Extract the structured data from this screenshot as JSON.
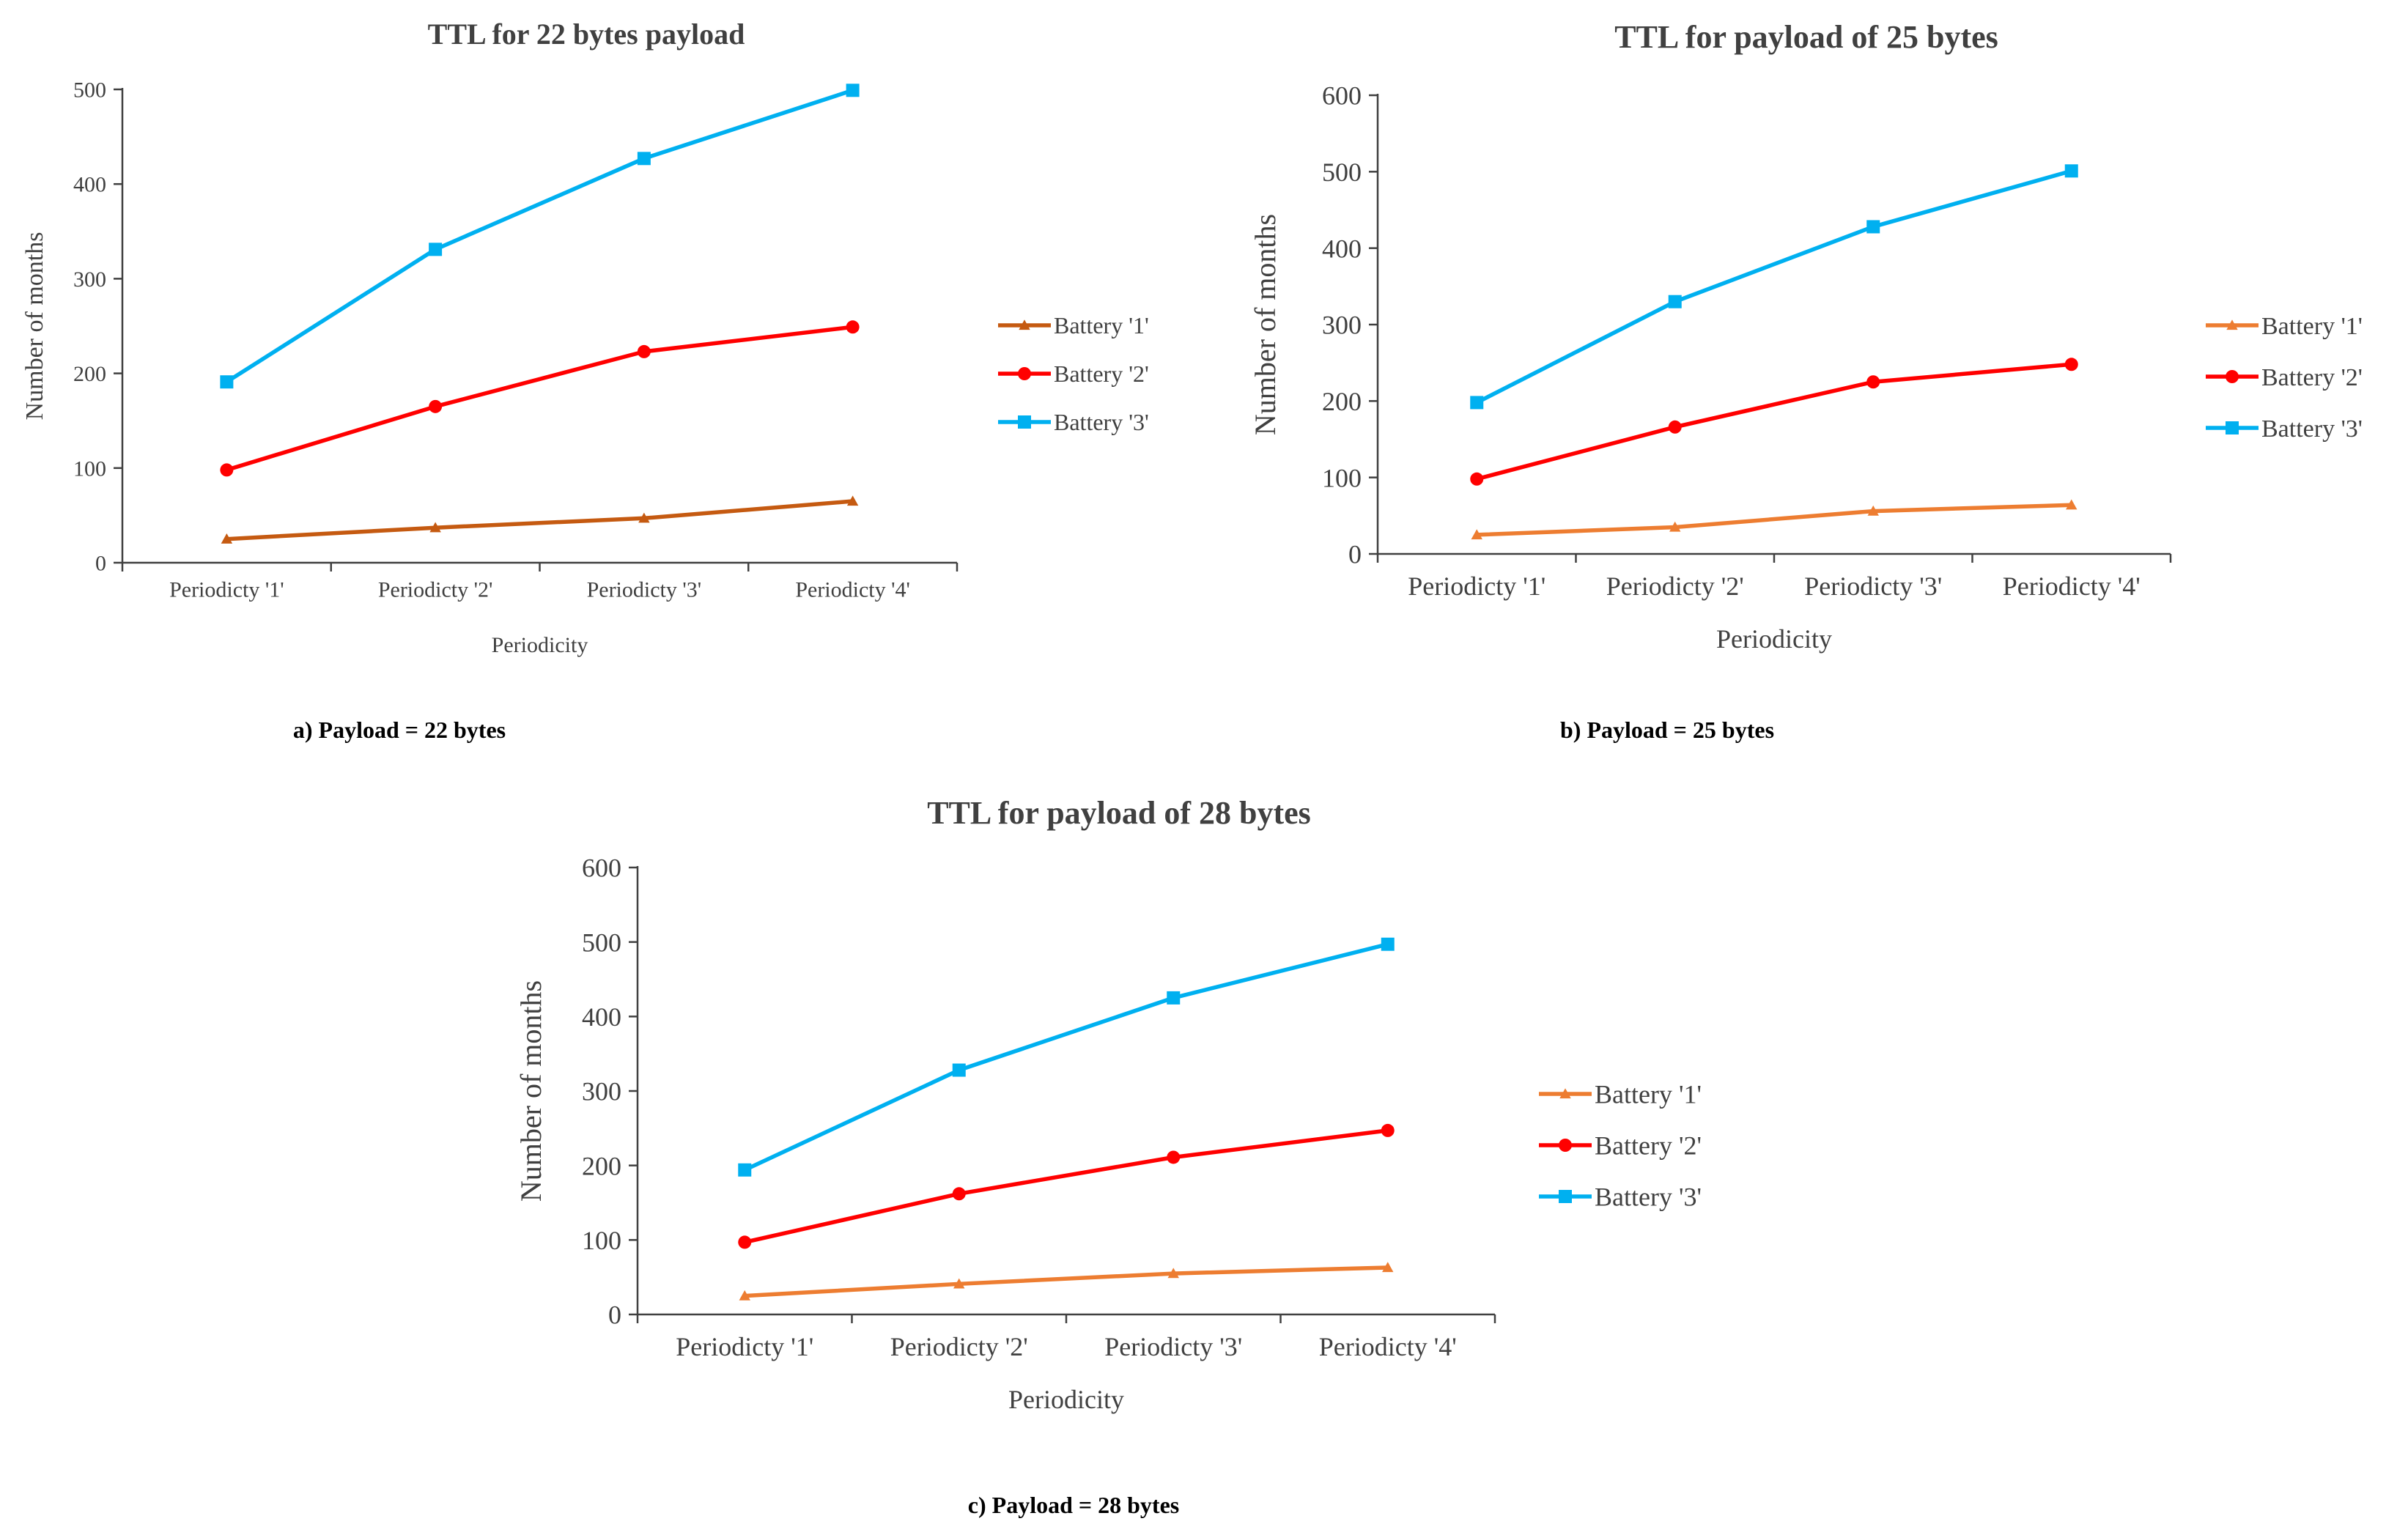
{
  "chart_data": [
    {
      "type": "line",
      "title": "TTL for 22 bytes payload",
      "caption": "a) Payload = 22 bytes",
      "xlabel": "Periodicity",
      "ylabel": "Number of months",
      "categories": [
        "Periodicty '1'",
        "Periodicty '2'",
        "Periodicty '3'",
        "Periodicty '4'"
      ],
      "ylim": [
        0,
        500
      ],
      "yticks": [
        0,
        100,
        200,
        300,
        400,
        500
      ],
      "legend_position": "right",
      "series": [
        {
          "name": "Battery '1'",
          "color": "#c55a11",
          "marker": "triangle",
          "values": [
            25,
            37,
            47,
            65
          ]
        },
        {
          "name": "Battery '2'",
          "color": "#ff0000",
          "marker": "circle",
          "values": [
            98,
            165,
            223,
            249
          ]
        },
        {
          "name": "Battery '3'",
          "color": "#00b0f0",
          "marker": "square",
          "values": [
            191,
            331,
            427,
            499
          ]
        }
      ]
    },
    {
      "type": "line",
      "title": "TTL for payload of 25 bytes",
      "caption": "b) Payload = 25 bytes",
      "xlabel": "Periodicity",
      "ylabel": "Number of months",
      "categories": [
        "Periodicty '1'",
        "Periodicty '2'",
        "Periodicty '3'",
        "Periodicty '4'"
      ],
      "ylim": [
        0,
        600
      ],
      "yticks": [
        0,
        100,
        200,
        300,
        400,
        500,
        600
      ],
      "legend_position": "right",
      "series": [
        {
          "name": "Battery '1'",
          "color": "#ed7d31",
          "marker": "triangle",
          "values": [
            25,
            35,
            56,
            64
          ]
        },
        {
          "name": "Battery '2'",
          "color": "#ff0000",
          "marker": "circle",
          "values": [
            98,
            166,
            225,
            248
          ]
        },
        {
          "name": "Battery '3'",
          "color": "#00b0f0",
          "marker": "square",
          "values": [
            198,
            330,
            428,
            501
          ]
        }
      ]
    },
    {
      "type": "line",
      "title": "TTL for payload of 28 bytes",
      "caption": "c) Payload = 28 bytes",
      "xlabel": "Periodicity",
      "ylabel": "Number of months",
      "categories": [
        "Periodicty '1'",
        "Periodicty '2'",
        "Periodicty '3'",
        "Periodicty '4'"
      ],
      "ylim": [
        0,
        600
      ],
      "yticks": [
        0,
        100,
        200,
        300,
        400,
        500,
        600
      ],
      "legend_position": "right",
      "series": [
        {
          "name": "Battery '1'",
          "color": "#ed7d31",
          "marker": "triangle",
          "values": [
            25,
            41,
            55,
            63
          ]
        },
        {
          "name": "Battery '2'",
          "color": "#ff0000",
          "marker": "circle",
          "values": [
            97,
            162,
            211,
            247
          ]
        },
        {
          "name": "Battery '3'",
          "color": "#00b0f0",
          "marker": "square",
          "values": [
            194,
            328,
            425,
            497
          ]
        }
      ]
    }
  ]
}
